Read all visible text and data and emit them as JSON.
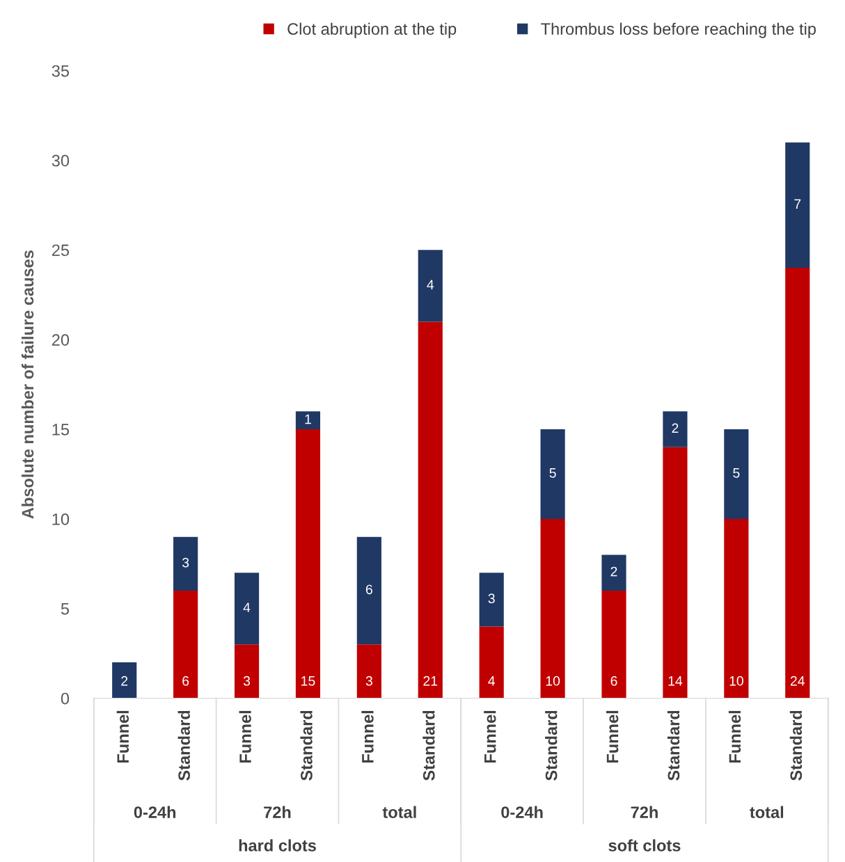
{
  "chart_data": {
    "type": "bar",
    "stacked": true,
    "ylabel": "Absolute number of failure causes",
    "categories": [
      "Funnel",
      "Standard",
      "Funnel",
      "Standard",
      "Funnel",
      "Standard",
      "Funnel",
      "Standard",
      "Funnel",
      "Standard",
      "Funnel",
      "Standard"
    ],
    "series": [
      {
        "name": "Clot abruption at the tip",
        "color": "#c00000",
        "values": [
          null,
          6,
          3,
          15,
          3,
          21,
          4,
          10,
          6,
          14,
          10,
          24
        ]
      },
      {
        "name": "Thrombus loss before reaching the tip",
        "color": "#203864",
        "values": [
          2,
          3,
          4,
          1,
          6,
          4,
          3,
          5,
          2,
          2,
          5,
          7
        ]
      }
    ],
    "ylim": [
      0,
      35
    ],
    "yticks": [
      0,
      5,
      10,
      15,
      20,
      25,
      30,
      35
    ],
    "grid": false,
    "legend": "top",
    "data_labels": true,
    "annotations": [
      "0-24h",
      "72h",
      "total",
      "0-24h",
      "72h",
      "total",
      "hard clots",
      "soft clots"
    ]
  }
}
